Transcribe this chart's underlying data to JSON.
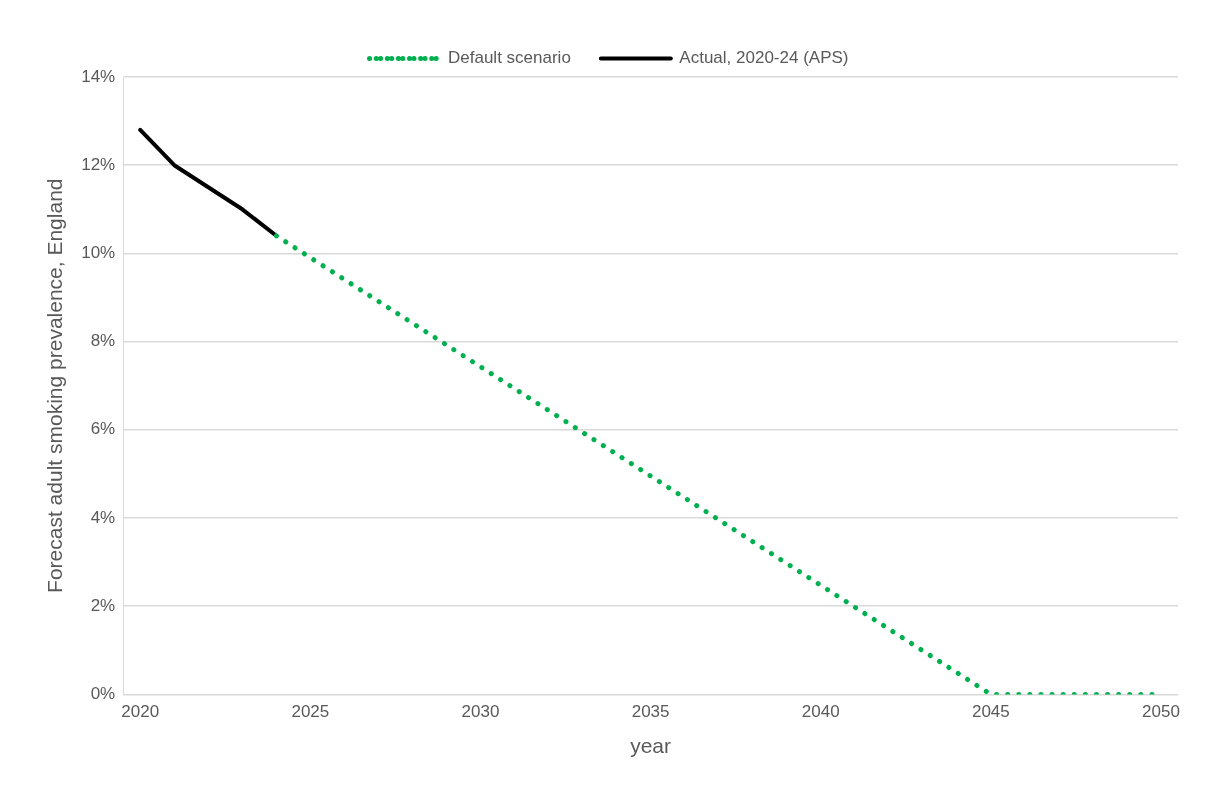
{
  "chart_data": {
    "type": "line",
    "xlabel": "year",
    "ylabel": "Forecast adult smoking prevalence, England",
    "xlim": [
      2019.5,
      2050.5
    ],
    "xticks": [
      2020,
      2025,
      2030,
      2035,
      2040,
      2045,
      2050
    ],
    "ylim": [
      0,
      14
    ],
    "yticks": [
      {
        "value": 0,
        "label": "0%"
      },
      {
        "value": 2,
        "label": "2%"
      },
      {
        "value": 4,
        "label": "4%"
      },
      {
        "value": 6,
        "label": "6%"
      },
      {
        "value": 8,
        "label": "8%"
      },
      {
        "value": 10,
        "label": "10%"
      },
      {
        "value": 12,
        "label": "12%"
      },
      {
        "value": 14,
        "label": "14%"
      }
    ],
    "grid": "y",
    "legend": "top",
    "marker": "none",
    "series": [
      {
        "name": "Default scenario",
        "color": "#00b050",
        "line_style": "dotted",
        "x": [
          2024,
          2045,
          2050
        ],
        "values": [
          10.4,
          0,
          0
        ]
      },
      {
        "name": "Actual, 2020-24 (APS)",
        "color": "#000000",
        "line_style": "solid",
        "x": [
          2020,
          2021,
          2022,
          2023,
          2024
        ],
        "values": [
          12.8,
          12.0,
          11.5,
          11.0,
          10.4
        ]
      }
    ]
  }
}
